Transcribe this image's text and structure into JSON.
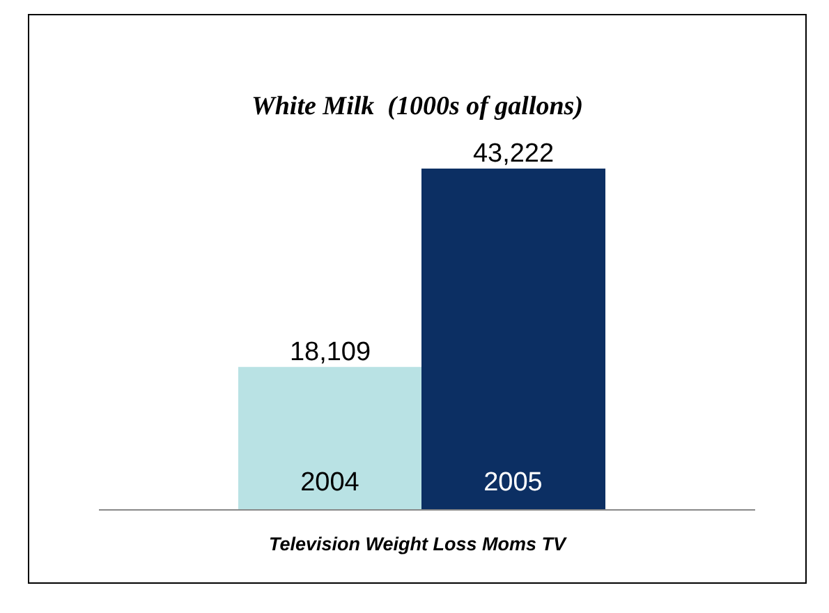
{
  "chart_data": {
    "type": "bar",
    "title": "White Milk  (1000s of gallons)",
    "xlabel": "Television Weight Loss Moms TV",
    "categories": [
      "2004",
      "2005"
    ],
    "values": [
      18109,
      43222
    ],
    "colors": [
      "#b9e2e4",
      "#0c2f63"
    ],
    "value_labels": [
      "18,109",
      "43,222"
    ]
  }
}
